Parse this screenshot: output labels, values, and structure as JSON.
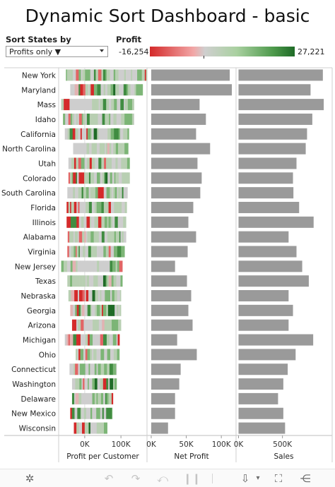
{
  "title": "Dynamic Sort Dashboard - basic",
  "controls": {
    "sort_label": "Sort States by",
    "sort_value": "Profits only ▼",
    "legend_label": "Profit",
    "legend_min": "-16,254",
    "legend_max": "27,221"
  },
  "colors": {
    "bar_gray": "#9a9a9a",
    "profit_negative": "#d42a2a",
    "profit_neutral": "#cfcfcf",
    "profit_positive": "#1f6b27"
  },
  "chart_data": {
    "type": "bar",
    "categories": [
      "New York",
      "Maryland",
      "Mass",
      "Idaho",
      "California",
      "North Carolina",
      "Utah",
      "Colorado",
      "South Carolina",
      "Florida",
      "Illinois",
      "Alabama",
      "Virginia",
      "New Jersey",
      "Texas",
      "Nebraska",
      "Georgia",
      "Arizona",
      "Michigan",
      "Ohio",
      "Connecticut",
      "Washington",
      "Delaware",
      "New Mexico",
      "Wisconsin"
    ],
    "panels": [
      {
        "xlabel": "Profit per Customer",
        "tick_values": [
          0,
          100000
        ],
        "tick_labels": [
          "0K",
          "100K"
        ],
        "xlim": [
          -70000,
          170000
        ],
        "strip_ranges": [
          [
            -52000,
            172000
          ],
          [
            -40000,
            160000
          ],
          [
            -65000,
            136000
          ],
          [
            -60000,
            136000
          ],
          [
            -55000,
            122000
          ],
          [
            -32000,
            120000
          ],
          [
            -45000,
            124000
          ],
          [
            -45000,
            124000
          ],
          [
            -48000,
            118000
          ],
          [
            -50000,
            116000
          ],
          [
            -50000,
            114000
          ],
          [
            -47000,
            114000
          ],
          [
            -48000,
            110000
          ],
          [
            -65000,
            104000
          ],
          [
            -48000,
            104000
          ],
          [
            -45000,
            100000
          ],
          [
            -40000,
            100000
          ],
          [
            -35000,
            100000
          ],
          [
            -55000,
            96000
          ],
          [
            -25000,
            96000
          ],
          [
            -42000,
            88000
          ],
          [
            -35000,
            88000
          ],
          [
            -35000,
            78000
          ],
          [
            -40000,
            76000
          ],
          [
            -30000,
            62000
          ]
        ]
      },
      {
        "xlabel": "Net Profit",
        "tick_values": [
          0,
          50000,
          100000
        ],
        "tick_labels": [
          "0K",
          "50K",
          "100K"
        ],
        "xlim": [
          -5000,
          120000
        ],
        "values": [
          112000,
          115000,
          69000,
          78000,
          64000,
          84000,
          66000,
          72000,
          70000,
          60000,
          53000,
          64000,
          52000,
          34000,
          51000,
          57000,
          53000,
          59000,
          37000,
          65000,
          42000,
          40000,
          34000,
          34000,
          24000
        ]
      },
      {
        "xlabel": "Sales",
        "tick_values": [
          0,
          500000
        ],
        "tick_labels": [
          "0K",
          "500K"
        ],
        "xlim": [
          -20000,
          1050000
        ],
        "values": [
          960000,
          820000,
          970000,
          840000,
          780000,
          765000,
          660000,
          620000,
          625000,
          690000,
          855000,
          570000,
          660000,
          725000,
          800000,
          570000,
          620000,
          570000,
          850000,
          650000,
          560000,
          510000,
          450000,
          510000,
          530000
        ]
      }
    ]
  }
}
